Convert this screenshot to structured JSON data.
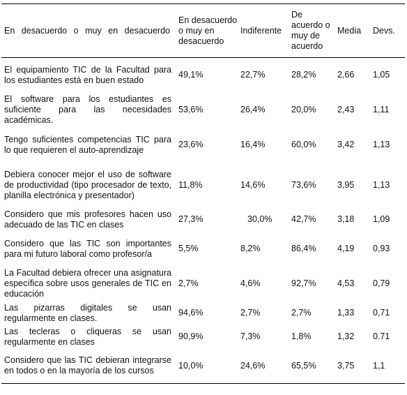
{
  "table": {
    "headers": [
      "En desacuerdo o muy en desacuerdo",
      "En desacuerdo o muy en desacuerdo",
      "Indiferente",
      "De acuerdo o muy de acuerdo",
      "Media",
      "Devs."
    ],
    "rows": [
      [
        "El equipamiento TIC de la Facultad para los estudiantes está en buen estado",
        "49,1%",
        "22,7%",
        "28,2%",
        "2,66",
        "1,05"
      ],
      [
        "El software para los estudiantes es suficiente para las necesidades académicas.",
        "53,6%",
        "26,4%",
        "20,0%",
        "2,43",
        "1,11"
      ],
      [
        "Tengo suficientes competencias TIC para lo que requieren el auto-aprendizaje",
        "23,6%",
        "16,4%",
        "60,0%",
        "3,42",
        "1,13"
      ],
      [
        "Debiera conocer mejor el uso de software de productividad (tipo procesador de texto, planilla electrónica y presentador)",
        "11,8%",
        "14,6%",
        "73,6%",
        "3,95",
        "1,13"
      ],
      [
        "Considero que mis profesores hacen uso adecuado de las TIC en clases",
        "27,3%",
        "30,0%",
        "42,7%",
        "3,18",
        "1,09"
      ],
      [
        "Considero que las TIC son importantes para mi futuro laboral como profesor/a",
        "5,5%",
        "8,2%",
        "86,4%",
        "4,19",
        "0,93"
      ],
      [
        "La Facultad debiera ofrecer una asignatura específica sobre usos generales de TIC en educación",
        "2,7%",
        "4,6%",
        "92,7%",
        "4,53",
        "0,79"
      ],
      [
        "Las pizarras digitales se usan regularmente en clases.",
        "94,6%",
        "2,7%",
        "2,7%",
        "1,33",
        "0,71"
      ],
      [
        "Las tecleras o cliqueras se usan regularmente en clases",
        "90,9%",
        "7,3%",
        "1,8%",
        "1,32",
        "0.71"
      ],
      [
        "Considero que las TIC debieran integrarse en todos o en la mayoría de los cursos",
        "10,0%",
        "24,6%",
        "65,5%",
        "3,75",
        "1,1"
      ]
    ]
  }
}
